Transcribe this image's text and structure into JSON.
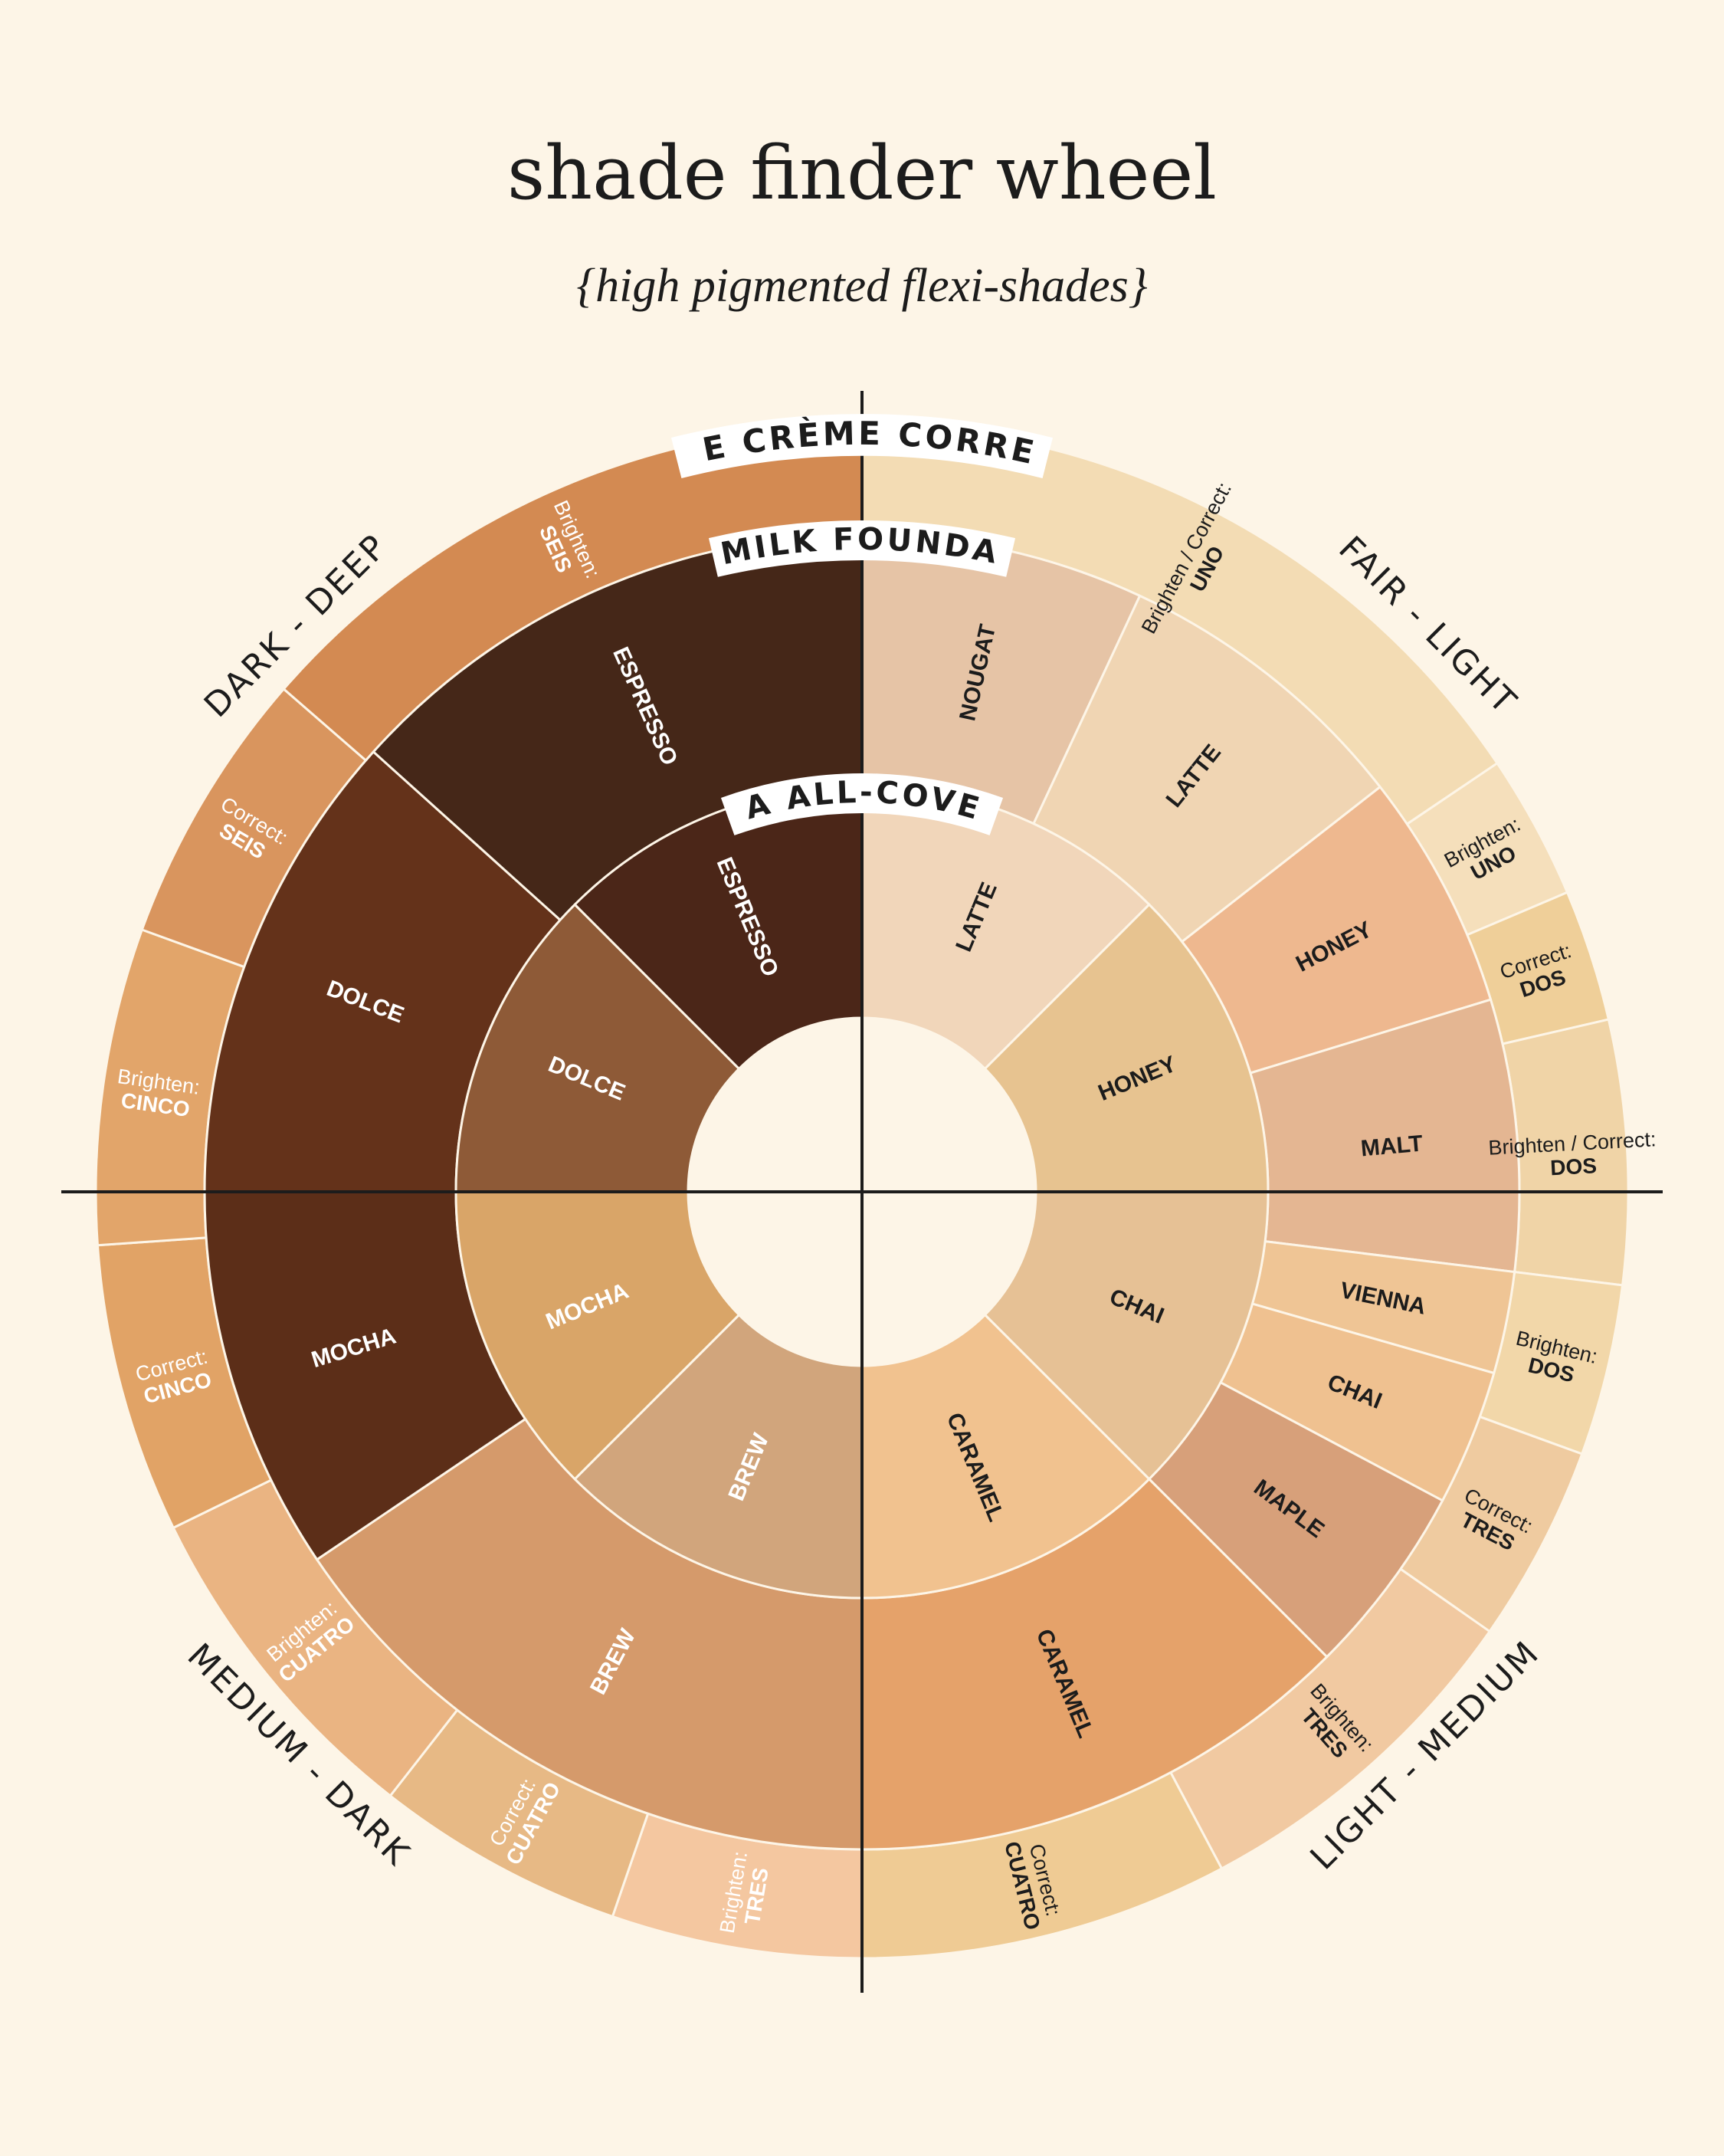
{
  "title": "shade finder wheel",
  "subtitle": "{high pigmented flexi-shades}",
  "quadrants": [
    {
      "label": "FAIR - LIGHT",
      "flip": false
    },
    {
      "label": "LIGHT - MEDIUM",
      "flip": true
    },
    {
      "label": "MEDIUM - DARK",
      "flip": true
    },
    {
      "label": "DARK - DEEP",
      "flip": false
    }
  ],
  "rings": {
    "outer": {
      "title": "LYCHEE CRÈME CORRECTOR",
      "segments": [
        {
          "line1": "Brighten / Correct:",
          "line2": "UNO",
          "color": "#f3dcb4",
          "text": "#1c1c1c",
          "start": 0,
          "end": 56
        },
        {
          "line1": "Brighten:",
          "line2": "UNO",
          "color": "#f5dfbb",
          "text": "#1c1c1c",
          "start": 56,
          "end": 67
        },
        {
          "line1": "Correct:",
          "line2": "DOS",
          "color": "#efcf99",
          "text": "#1c1c1c",
          "start": 67,
          "end": 77
        },
        {
          "line1": "Brighten / Correct:",
          "line2": "DOS",
          "color": "#f0d4a7",
          "text": "#1c1c1c",
          "start": 77,
          "end": 97
        },
        {
          "line1": "Brighten:",
          "line2": "DOS",
          "color": "#f2d7a9",
          "text": "#1c1c1c",
          "start": 97,
          "end": 110
        },
        {
          "line1": "Correct:",
          "line2": "TRES",
          "color": "#efcba0",
          "text": "#1c1c1c",
          "start": 110,
          "end": 125
        },
        {
          "line1": "Brighten:",
          "line2": "TRES",
          "color": "#f1c9a1",
          "text": "#1c1c1c",
          "start": 125,
          "end": 152
        },
        {
          "line1": "Correct:",
          "line2": "CUATRO",
          "color": "#efcb94",
          "text": "#1c1c1c",
          "start": 152,
          "end": 180
        },
        {
          "line1": "Brighten:",
          "line2": "TRES",
          "color": "#f4c7a0",
          "text": "#ffffff",
          "start": 180,
          "end": 199
        },
        {
          "line1": "Correct:",
          "line2": "CUATRO",
          "color": "#e7b985",
          "text": "#ffffff",
          "start": 199,
          "end": 218
        },
        {
          "line1": "Brighten:",
          "line2": "CUATRO",
          "color": "#eab482",
          "text": "#ffffff",
          "start": 218,
          "end": 244
        },
        {
          "line1": "Correct:",
          "line2": "CINCO",
          "color": "#e1a366",
          "text": "#ffffff",
          "start": 244,
          "end": 266
        },
        {
          "line1": "Brighten:",
          "line2": "CINCO",
          "color": "#e2a56a",
          "text": "#ffffff",
          "start": 266,
          "end": 290
        },
        {
          "line1": "Correct:",
          "line2": "SEIS",
          "color": "#d9955e",
          "text": "#ffffff",
          "start": 290,
          "end": 311
        },
        {
          "line1": "Brighten:",
          "line2": "SEIS",
          "color": "#d38a52",
          "text": "#ffffff",
          "start": 311,
          "end": 360
        }
      ]
    },
    "middle": {
      "title": "OAT MILK FOUNDATION",
      "segments": [
        {
          "label": "NOUGAT",
          "color": "#e6c4a6",
          "text": "#1c1c1c",
          "start": 0,
          "end": 25
        },
        {
          "label": "LATTE",
          "color": "#f0d5b3",
          "text": "#1c1c1c",
          "start": 25,
          "end": 52
        },
        {
          "label": "HONEY",
          "color": "#eeb88f",
          "text": "#1c1c1c",
          "start": 52,
          "end": 73
        },
        {
          "label": "MALT",
          "color": "#e4b692",
          "text": "#1c1c1c",
          "start": 73,
          "end": 97
        },
        {
          "label": "VIENNA",
          "color": "#efc595",
          "text": "#1c1c1c",
          "start": 97,
          "end": 106
        },
        {
          "label": "CHAI",
          "color": "#efc190",
          "text": "#1c1c1c",
          "start": 106,
          "end": 118
        },
        {
          "label": "MAPLE",
          "color": "#d7a07a",
          "text": "#1c1c1c",
          "start": 118,
          "end": 135
        },
        {
          "label": "CARAMEL",
          "color": "#e5a26a",
          "text": "#1c1c1c",
          "start": 135,
          "end": 180
        },
        {
          "label": "BREW",
          "color": "#d59a6b",
          "text": "#ffffff",
          "start": 180,
          "end": 236
        },
        {
          "label": "MOCHA",
          "color": "#5c2e18",
          "text": "#ffffff",
          "start": 236,
          "end": 270
        },
        {
          "label": "DOLCE",
          "color": "#64321a",
          "text": "#ffffff",
          "start": 270,
          "end": 312
        },
        {
          "label": "ESPRESSO",
          "color": "#452718",
          "text": "#ffffff",
          "start": 312,
          "end": 360
        }
      ]
    },
    "inner": {
      "title": "ARNICA ALL-COVER POT",
      "segments": [
        {
          "label": "LATTE",
          "color": "#f1d6ba",
          "text": "#1c1c1c",
          "start": 0,
          "end": 45
        },
        {
          "label": "HONEY",
          "color": "#e7c390",
          "text": "#1c1c1c",
          "start": 45,
          "end": 90
        },
        {
          "label": "CHAI",
          "color": "#e6c195",
          "text": "#1c1c1c",
          "start": 90,
          "end": 135
        },
        {
          "label": "CARAMEL",
          "color": "#f1c28f",
          "text": "#1c1c1c",
          "start": 135,
          "end": 180
        },
        {
          "label": "BREW",
          "color": "#d1a57c",
          "text": "#ffffff",
          "start": 180,
          "end": 225
        },
        {
          "label": "MOCHA",
          "color": "#d9a568",
          "text": "#ffffff",
          "start": 225,
          "end": 270
        },
        {
          "label": "DOLCE",
          "color": "#8e5a37",
          "text": "#ffffff",
          "start": 270,
          "end": 315
        },
        {
          "label": "ESPRESSO",
          "color": "#4b2618",
          "text": "#ffffff",
          "start": 315,
          "end": 360
        }
      ]
    }
  },
  "colors": {
    "background": "#fdf5e7",
    "ink": "#1c1c1c",
    "center": "#fdf5e7",
    "divider": "#fdf5e7"
  }
}
